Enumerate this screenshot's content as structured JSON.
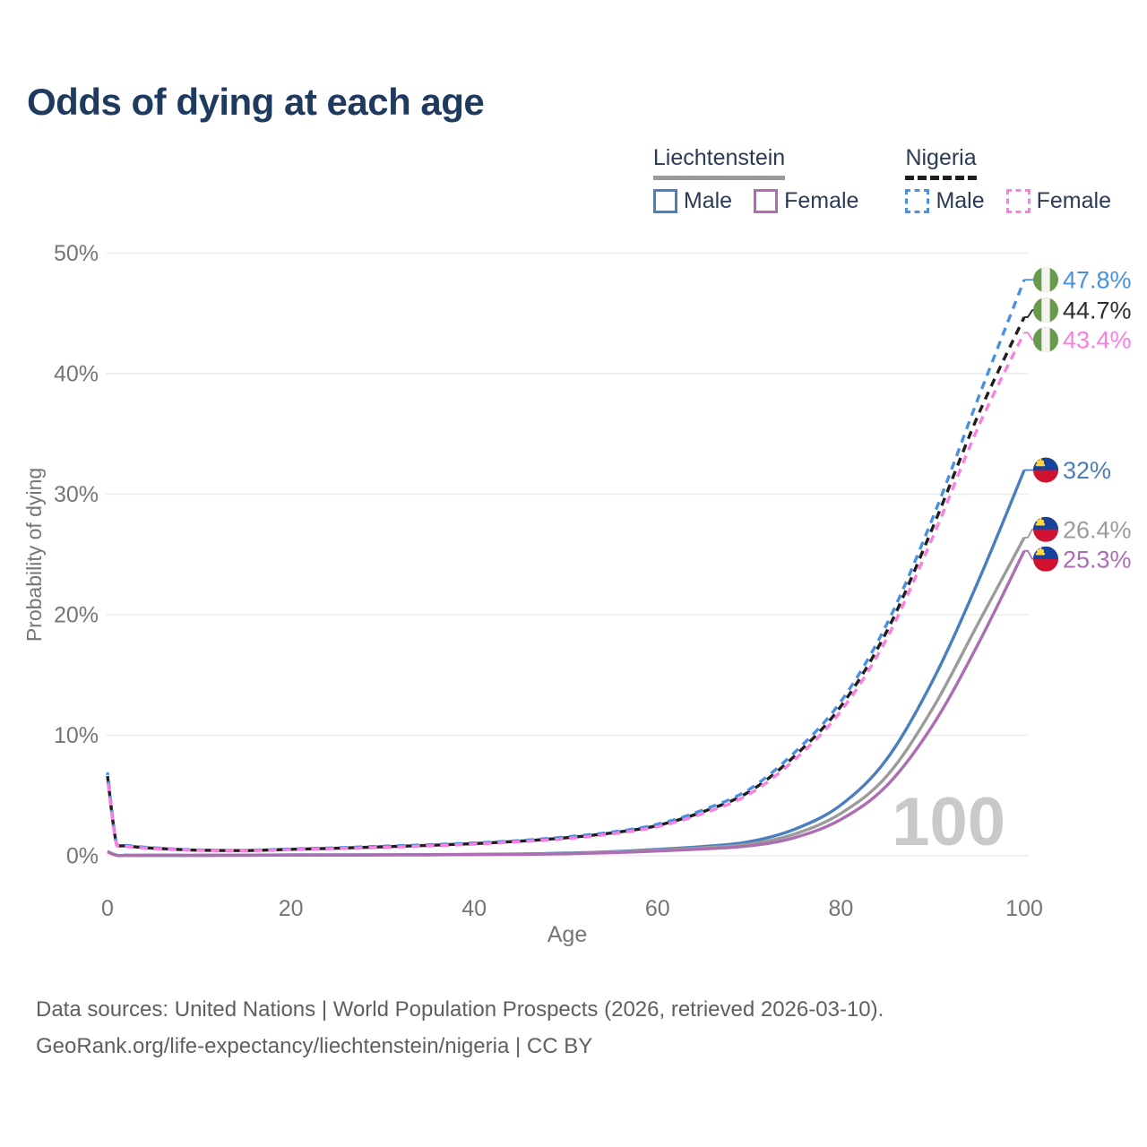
{
  "title": "Odds of dying at each age",
  "legend": {
    "groups": [
      {
        "label": "Liechtenstein",
        "line_style": "solid",
        "rule_color": "#9b9b9b",
        "items": [
          {
            "label": "Male",
            "color": "#4a7ebf"
          },
          {
            "label": "Female",
            "color": "#ad6db3"
          }
        ]
      },
      {
        "label": "Nigeria",
        "line_style": "dashed",
        "rule_color": "#1f1f1f",
        "items": [
          {
            "label": "Male",
            "color": "#4a90e2"
          },
          {
            "label": "Female",
            "color": "#fb7ee0"
          }
        ]
      }
    ]
  },
  "footer": {
    "line1": "Data sources: United Nations | World Population Prospects (2026, retrieved 2026-03-10).",
    "line2": "GeoRank.org/life-expectancy/liechtenstein/nigeria | CC BY"
  },
  "chart_data": {
    "type": "line",
    "title": "Odds of dying at each age",
    "x_axis": {
      "label": "Age",
      "ticks": [
        0,
        20,
        40,
        60,
        80,
        100
      ],
      "range": [
        0,
        100
      ]
    },
    "y_axis": {
      "label": "Probability of dying",
      "ticks": [
        {
          "value": 0,
          "label": "0%"
        },
        {
          "value": 10,
          "label": "10%"
        },
        {
          "value": 20,
          "label": "20%"
        },
        {
          "value": 30,
          "label": "30%"
        },
        {
          "value": 40,
          "label": "40%"
        },
        {
          "value": 50,
          "label": "50%"
        }
      ],
      "range": [
        0,
        50
      ]
    },
    "grid": "horizontal",
    "legend_position": "top-right",
    "watermark": "100",
    "ages": [
      0,
      1,
      2,
      4,
      6,
      8,
      10,
      15,
      20,
      25,
      30,
      35,
      40,
      45,
      50,
      55,
      60,
      65,
      70,
      75,
      80,
      85,
      90,
      95,
      100
    ],
    "series": [
      {
        "id": "liechtenstein-male",
        "name": "Liechtenstein Male",
        "country": "Liechtenstein",
        "sex": "Male",
        "color": "#4a7ebf",
        "label_color": "#4a7ebf",
        "line_style": "solid",
        "dash_offset": 0,
        "flag": "liechtenstein",
        "end_label": "32%",
        "values": [
          0.35,
          0.03,
          0.02,
          0.02,
          0.02,
          0.02,
          0.02,
          0.04,
          0.06,
          0.06,
          0.07,
          0.08,
          0.1,
          0.14,
          0.21,
          0.33,
          0.52,
          0.75,
          1.15,
          2.2,
          4.2,
          8.0,
          14.5,
          22.8,
          32.0
        ]
      },
      {
        "id": "liechtenstein-both",
        "name": "Liechtenstein",
        "country": "Liechtenstein",
        "sex": "Both",
        "color": "#9b9b9b",
        "label_color": "#9b9b9b",
        "line_style": "solid",
        "dash_offset": 0,
        "flag": "liechtenstein",
        "end_label": "26.4%",
        "values": [
          0.32,
          0.03,
          0.02,
          0.02,
          0.02,
          0.02,
          0.02,
          0.03,
          0.05,
          0.05,
          0.06,
          0.07,
          0.09,
          0.12,
          0.18,
          0.28,
          0.45,
          0.65,
          0.95,
          1.8,
          3.5,
          6.6,
          12.2,
          19.3,
          26.4
        ]
      },
      {
        "id": "liechtenstein-female",
        "name": "Liechtenstein Female",
        "country": "Liechtenstein",
        "sex": "Female",
        "color": "#ad6db3",
        "label_color": "#ad6db3",
        "line_style": "solid",
        "dash_offset": 0,
        "flag": "liechtenstein",
        "end_label": "25.3%",
        "values": [
          0.3,
          0.02,
          0.02,
          0.02,
          0.02,
          0.02,
          0.02,
          0.03,
          0.04,
          0.04,
          0.05,
          0.06,
          0.08,
          0.1,
          0.15,
          0.24,
          0.38,
          0.55,
          0.8,
          1.5,
          3.0,
          5.8,
          10.8,
          17.6,
          25.3
        ]
      },
      {
        "id": "nigeria-both",
        "name": "Nigeria",
        "country": "Nigeria",
        "sex": "Both",
        "color": "#1f1f1f",
        "label_color": "#2d2d2d",
        "line_style": "dashed",
        "dash_offset": 0,
        "flag": "nigeria",
        "end_label": "44.7%",
        "values": [
          6.6,
          0.9,
          0.8,
          0.66,
          0.57,
          0.5,
          0.45,
          0.42,
          0.52,
          0.61,
          0.73,
          0.85,
          1.0,
          1.2,
          1.48,
          1.88,
          2.5,
          3.65,
          5.3,
          8.3,
          12.4,
          18.6,
          27.2,
          36.6,
          44.7
        ]
      },
      {
        "id": "nigeria-male",
        "name": "Nigeria Male",
        "country": "Nigeria",
        "sex": "Male",
        "color": "#4a90e2",
        "label_color": "#4a90e2",
        "line_style": "dashed",
        "dash_offset": 6,
        "flag": "nigeria",
        "end_label": "47.8%",
        "values": [
          6.9,
          0.95,
          0.85,
          0.7,
          0.6,
          0.52,
          0.47,
          0.44,
          0.55,
          0.65,
          0.78,
          0.9,
          1.05,
          1.25,
          1.55,
          1.95,
          2.6,
          3.8,
          5.5,
          8.6,
          12.8,
          19.2,
          28.0,
          38.0,
          47.8
        ]
      },
      {
        "id": "nigeria-female",
        "name": "Nigeria Female",
        "country": "Nigeria",
        "sex": "Female",
        "color": "#fb7ee0",
        "label_color": "#fb7ee0",
        "line_style": "dashed",
        "dash_offset": 12,
        "flag": "nigeria",
        "end_label": "43.4%",
        "values": [
          6.3,
          0.85,
          0.76,
          0.62,
          0.54,
          0.48,
          0.43,
          0.4,
          0.49,
          0.58,
          0.68,
          0.8,
          0.95,
          1.15,
          1.4,
          1.8,
          2.4,
          3.5,
          5.1,
          8.0,
          12.0,
          18.0,
          26.4,
          35.6,
          43.4
        ]
      }
    ]
  }
}
